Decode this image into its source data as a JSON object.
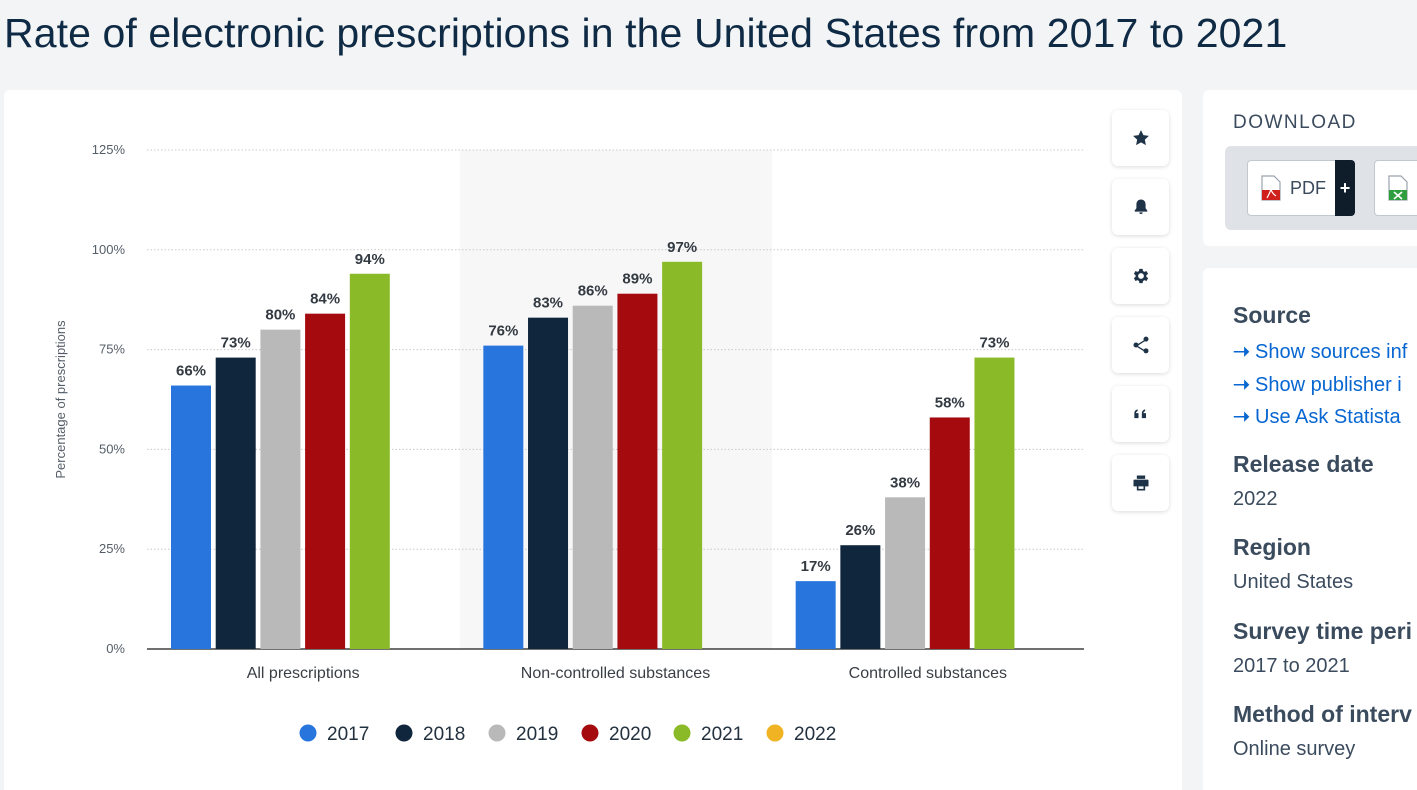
{
  "page": {
    "title": "Rate of electronic prescriptions in the United States from 2017 to 2021"
  },
  "chart_data": {
    "type": "bar",
    "title": "",
    "xlabel": "",
    "ylabel": "Percentage of prescriptions",
    "ylim": [
      0,
      125
    ],
    "yticks": [
      0,
      25,
      50,
      75,
      100,
      125
    ],
    "ytick_labels": [
      "0%",
      "25%",
      "50%",
      "75%",
      "100%",
      "125%"
    ],
    "grid": true,
    "legend_position": "bottom",
    "categories": [
      "All prescriptions",
      "Non-controlled substances",
      "Controlled substances"
    ],
    "series": [
      {
        "name": "2017",
        "color": "#2876dd",
        "values": [
          66,
          76,
          17
        ]
      },
      {
        "name": "2018",
        "color": "#10263d",
        "values": [
          73,
          83,
          26
        ]
      },
      {
        "name": "2019",
        "color": "#b9b9b9",
        "values": [
          80,
          86,
          38
        ]
      },
      {
        "name": "2020",
        "color": "#a50a0f",
        "values": [
          84,
          89,
          58
        ]
      },
      {
        "name": "2021",
        "color": "#8aba27",
        "values": [
          94,
          97,
          73
        ]
      },
      {
        "name": "2022",
        "color": "#f0b323",
        "values": [
          null,
          null,
          null
        ]
      }
    ],
    "value_suffix": "%"
  },
  "toolbar": {
    "buttons": [
      {
        "name": "favorite-button",
        "icon": "star-icon"
      },
      {
        "name": "notification-button",
        "icon": "bell-icon"
      },
      {
        "name": "settings-button",
        "icon": "gear-icon"
      },
      {
        "name": "share-button",
        "icon": "share-icon"
      },
      {
        "name": "cite-button",
        "icon": "quote-icon"
      },
      {
        "name": "print-button",
        "icon": "printer-icon"
      }
    ]
  },
  "download": {
    "title": "DOWNLOAD",
    "pdf_label": "PDF",
    "plus_label": "+"
  },
  "info": {
    "source_heading": "Source",
    "links": [
      "Show sources inf",
      "Show publisher i",
      "Use Ask Statista"
    ],
    "release_heading": "Release date",
    "release_value": "2022",
    "region_heading": "Region",
    "region_value": "United States",
    "survey_heading": "Survey time peri",
    "survey_value": "2017 to 2021",
    "method_heading": "Method of interv",
    "method_value": "Online survey"
  }
}
